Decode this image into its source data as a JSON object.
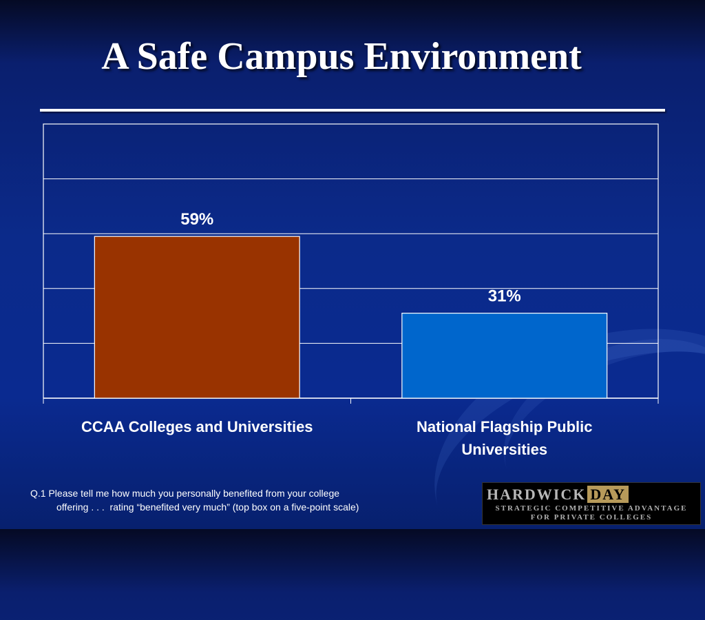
{
  "slide": {
    "title": "A Safe Campus Environment",
    "footnote": "Q.1 Please tell me how much you personally benefited from your college\noffering . . .  rating “benefited very much” (top box on a five-point scale)"
  },
  "logo": {
    "name_part1": "HARDWICK",
    "name_part2": "DAY",
    "tagline_1": "STRATEGIC COMPETITIVE ADVANTAGE",
    "tagline_2": "FOR PRIVATE COLLEGES"
  },
  "chart_data": {
    "type": "bar",
    "categories": [
      "CCAA Colleges and Universities",
      "National Flagship Public Universities"
    ],
    "category_lines": [
      [
        "CCAA Colleges and Universities"
      ],
      [
        "National Flagship Public",
        "Universities"
      ]
    ],
    "values": [
      59,
      31
    ],
    "value_labels": [
      "59%",
      "31%"
    ],
    "bar_colors": [
      "#993300",
      "#0066cc"
    ],
    "ylim": [
      0,
      100
    ],
    "grid": true,
    "legend": "none",
    "title": "",
    "xlabel": "",
    "ylabel": ""
  }
}
